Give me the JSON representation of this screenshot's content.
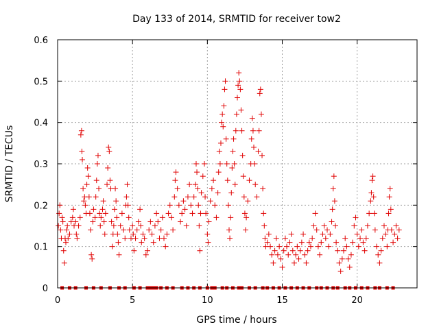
{
  "chart_data": {
    "type": "scatter",
    "title": "Day 133 of 2014, SRMTID for receiver tow2",
    "xlabel": "GPS time / hours",
    "ylabel": "SRMTID / TECUs",
    "xlim": [
      0,
      24
    ],
    "ylim": [
      0,
      0.6
    ],
    "xticks": [
      0,
      5,
      10,
      15,
      20
    ],
    "yticks": [
      0,
      0.1,
      0.2,
      0.3,
      0.4,
      0.5,
      0.6
    ],
    "xtick_labels": [
      "0",
      "5",
      "10",
      "15",
      "20"
    ],
    "ytick_labels": [
      "0",
      "0.1",
      "0.2",
      "0.3",
      "0.4",
      "0.5",
      "0.6"
    ],
    "grid": true,
    "marker": "plus",
    "color": "#e00000",
    "zero_marker": "square",
    "series": [
      {
        "name": "SRMTID",
        "points": [
          [
            0.05,
            0.15
          ],
          [
            0.1,
            0.18
          ],
          [
            0.15,
            0.2
          ],
          [
            0.2,
            0.14
          ],
          [
            0.25,
            0.12
          ],
          [
            0.3,
            0.17
          ],
          [
            0.35,
            0.16
          ],
          [
            0.4,
            0.09
          ],
          [
            0.45,
            0.06
          ],
          [
            0.5,
            0.12
          ],
          [
            0.55,
            0.11
          ],
          [
            0.6,
            0.14
          ],
          [
            0.65,
            0.15
          ],
          [
            0.7,
            0.12
          ],
          [
            0.8,
            0.13
          ],
          [
            0.9,
            0.16
          ],
          [
            1.0,
            0.17
          ],
          [
            1.05,
            0.19
          ],
          [
            1.1,
            0.15
          ],
          [
            1.2,
            0.16
          ],
          [
            1.25,
            0.13
          ],
          [
            1.3,
            0.12
          ],
          [
            1.4,
            0.15
          ],
          [
            1.5,
            0.17
          ],
          [
            1.55,
            0.37
          ],
          [
            1.6,
            0.38
          ],
          [
            1.62,
            0.33
          ],
          [
            1.65,
            0.31
          ],
          [
            1.7,
            0.24
          ],
          [
            1.75,
            0.21
          ],
          [
            1.8,
            0.22
          ],
          [
            1.85,
            0.2
          ],
          [
            1.9,
            0.18
          ],
          [
            1.95,
            0.25
          ],
          [
            2.0,
            0.29
          ],
          [
            2.05,
            0.27
          ],
          [
            2.1,
            0.22
          ],
          [
            2.15,
            0.18
          ],
          [
            2.2,
            0.14
          ],
          [
            2.25,
            0.08
          ],
          [
            2.3,
            0.07
          ],
          [
            2.35,
            0.16
          ],
          [
            2.4,
            0.19
          ],
          [
            2.5,
            0.17
          ],
          [
            2.55,
            0.22
          ],
          [
            2.6,
            0.26
          ],
          [
            2.65,
            0.3
          ],
          [
            2.7,
            0.32
          ],
          [
            2.75,
            0.24
          ],
          [
            2.8,
            0.18
          ],
          [
            2.85,
            0.15
          ],
          [
            2.9,
            0.17
          ],
          [
            3.0,
            0.19
          ],
          [
            3.05,
            0.21
          ],
          [
            3.1,
            0.16
          ],
          [
            3.15,
            0.13
          ],
          [
            3.2,
            0.18
          ],
          [
            3.3,
            0.25
          ],
          [
            3.35,
            0.29
          ],
          [
            3.4,
            0.34
          ],
          [
            3.45,
            0.33
          ],
          [
            3.5,
            0.26
          ],
          [
            3.55,
            0.24
          ],
          [
            3.6,
            0.16
          ],
          [
            3.65,
            0.1
          ],
          [
            3.7,
            0.13
          ],
          [
            3.75,
            0.15
          ],
          [
            3.8,
            0.19
          ],
          [
            3.85,
            0.24
          ],
          [
            3.9,
            0.21
          ],
          [
            3.95,
            0.17
          ],
          [
            4.0,
            0.13
          ],
          [
            4.05,
            0.11
          ],
          [
            4.1,
            0.08
          ],
          [
            4.2,
            0.15
          ],
          [
            4.3,
            0.18
          ],
          [
            4.4,
            0.14
          ],
          [
            4.5,
            0.12
          ],
          [
            4.55,
            0.2
          ],
          [
            4.6,
            0.22
          ],
          [
            4.65,
            0.25
          ],
          [
            4.7,
            0.2
          ],
          [
            4.75,
            0.17
          ],
          [
            4.8,
            0.14
          ],
          [
            4.9,
            0.12
          ],
          [
            5.0,
            0.15
          ],
          [
            5.05,
            0.13
          ],
          [
            5.1,
            0.09
          ],
          [
            5.2,
            0.12
          ],
          [
            5.3,
            0.14
          ],
          [
            5.4,
            0.16
          ],
          [
            5.5,
            0.19
          ],
          [
            5.55,
            0.15
          ],
          [
            5.6,
            0.11
          ],
          [
            5.7,
            0.13
          ],
          [
            5.8,
            0.12
          ],
          [
            5.9,
            0.08
          ],
          [
            6.0,
            0.09
          ],
          [
            6.1,
            0.14
          ],
          [
            6.2,
            0.16
          ],
          [
            6.3,
            0.13
          ],
          [
            6.4,
            0.11
          ],
          [
            6.5,
            0.15
          ],
          [
            6.6,
            0.18
          ],
          [
            6.7,
            0.16
          ],
          [
            6.8,
            0.12
          ],
          [
            6.9,
            0.14
          ],
          [
            7.0,
            0.17
          ],
          [
            7.1,
            0.12
          ],
          [
            7.2,
            0.1
          ],
          [
            7.3,
            0.13
          ],
          [
            7.4,
            0.18
          ],
          [
            7.5,
            0.2
          ],
          [
            7.6,
            0.17
          ],
          [
            7.7,
            0.14
          ],
          [
            7.8,
            0.22
          ],
          [
            7.85,
            0.26
          ],
          [
            7.9,
            0.28
          ],
          [
            8.0,
            0.24
          ],
          [
            8.1,
            0.2
          ],
          [
            8.2,
            0.16
          ],
          [
            8.3,
            0.18
          ],
          [
            8.4,
            0.21
          ],
          [
            8.5,
            0.19
          ],
          [
            8.6,
            0.15
          ],
          [
            8.7,
            0.22
          ],
          [
            8.8,
            0.25
          ],
          [
            8.9,
            0.2
          ],
          [
            9.0,
            0.18
          ],
          [
            9.1,
            0.22
          ],
          [
            9.2,
            0.25
          ],
          [
            9.25,
            0.3
          ],
          [
            9.3,
            0.28
          ],
          [
            9.35,
            0.24
          ],
          [
            9.4,
            0.2
          ],
          [
            9.45,
            0.15
          ],
          [
            9.5,
            0.09
          ],
          [
            9.55,
            0.18
          ],
          [
            9.6,
            0.23
          ],
          [
            9.7,
            0.27
          ],
          [
            9.8,
            0.3
          ],
          [
            9.85,
            0.22
          ],
          [
            9.9,
            0.18
          ],
          [
            10.0,
            0.13
          ],
          [
            10.05,
            0.11
          ],
          [
            10.1,
            0.16
          ],
          [
            10.2,
            0.21
          ],
          [
            10.3,
            0.24
          ],
          [
            10.4,
            0.26
          ],
          [
            10.5,
            0.2
          ],
          [
            10.6,
            0.17
          ],
          [
            10.7,
            0.23
          ],
          [
            10.75,
            0.28
          ],
          [
            10.8,
            0.33
          ],
          [
            10.85,
            0.3
          ],
          [
            10.9,
            0.35
          ],
          [
            10.95,
            0.4
          ],
          [
            11.0,
            0.42
          ],
          [
            11.05,
            0.39
          ],
          [
            11.1,
            0.44
          ],
          [
            11.15,
            0.48
          ],
          [
            11.2,
            0.5
          ],
          [
            11.25,
            0.36
          ],
          [
            11.3,
            0.3
          ],
          [
            11.35,
            0.26
          ],
          [
            11.4,
            0.2
          ],
          [
            11.45,
            0.14
          ],
          [
            11.5,
            0.12
          ],
          [
            11.55,
            0.17
          ],
          [
            11.6,
            0.23
          ],
          [
            11.65,
            0.29
          ],
          [
            11.7,
            0.33
          ],
          [
            11.75,
            0.36
          ],
          [
            11.8,
            0.3
          ],
          [
            11.85,
            0.25
          ],
          [
            11.9,
            0.38
          ],
          [
            11.95,
            0.42
          ],
          [
            12.0,
            0.46
          ],
          [
            12.05,
            0.49
          ],
          [
            12.1,
            0.52
          ],
          [
            12.15,
            0.5
          ],
          [
            12.2,
            0.48
          ],
          [
            12.25,
            0.43
          ],
          [
            12.3,
            0.38
          ],
          [
            12.35,
            0.32
          ],
          [
            12.4,
            0.27
          ],
          [
            12.45,
            0.22
          ],
          [
            12.5,
            0.18
          ],
          [
            12.55,
            0.14
          ],
          [
            12.6,
            0.17
          ],
          [
            12.7,
            0.21
          ],
          [
            12.8,
            0.26
          ],
          [
            12.9,
            0.3
          ],
          [
            12.95,
            0.36
          ],
          [
            13.0,
            0.41
          ],
          [
            13.05,
            0.38
          ],
          [
            13.1,
            0.34
          ],
          [
            13.15,
            0.3
          ],
          [
            13.2,
            0.25
          ],
          [
            13.3,
            0.22
          ],
          [
            13.4,
            0.33
          ],
          [
            13.45,
            0.38
          ],
          [
            13.5,
            0.47
          ],
          [
            13.55,
            0.48
          ],
          [
            13.6,
            0.42
          ],
          [
            13.65,
            0.32
          ],
          [
            13.7,
            0.24
          ],
          [
            13.75,
            0.18
          ],
          [
            13.8,
            0.15
          ],
          [
            13.85,
            0.12
          ],
          [
            13.9,
            0.1
          ],
          [
            14.0,
            0.11
          ],
          [
            14.1,
            0.13
          ],
          [
            14.2,
            0.1
          ],
          [
            14.3,
            0.08
          ],
          [
            14.4,
            0.06
          ],
          [
            14.5,
            0.09
          ],
          [
            14.6,
            0.12
          ],
          [
            14.7,
            0.08
          ],
          [
            14.8,
            0.1
          ],
          [
            14.9,
            0.07
          ],
          [
            15.0,
            0.05
          ],
          [
            15.1,
            0.09
          ],
          [
            15.2,
            0.12
          ],
          [
            15.3,
            0.1
          ],
          [
            15.4,
            0.08
          ],
          [
            15.5,
            0.11
          ],
          [
            15.6,
            0.13
          ],
          [
            15.7,
            0.09
          ],
          [
            15.8,
            0.06
          ],
          [
            15.9,
            0.08
          ],
          [
            16.0,
            0.1
          ],
          [
            16.1,
            0.07
          ],
          [
            16.2,
            0.09
          ],
          [
            16.3,
            0.11
          ],
          [
            16.4,
            0.13
          ],
          [
            16.5,
            0.08
          ],
          [
            16.6,
            0.06
          ],
          [
            16.7,
            0.09
          ],
          [
            16.8,
            0.11
          ],
          [
            16.9,
            0.1
          ],
          [
            17.0,
            0.12
          ],
          [
            17.1,
            0.15
          ],
          [
            17.2,
            0.18
          ],
          [
            17.3,
            0.14
          ],
          [
            17.4,
            0.1
          ],
          [
            17.5,
            0.08
          ],
          [
            17.6,
            0.11
          ],
          [
            17.7,
            0.13
          ],
          [
            17.8,
            0.15
          ],
          [
            17.9,
            0.12
          ],
          [
            18.0,
            0.14
          ],
          [
            18.1,
            0.1
          ],
          [
            18.2,
            0.13
          ],
          [
            18.3,
            0.16
          ],
          [
            18.35,
            0.19
          ],
          [
            18.4,
            0.24
          ],
          [
            18.45,
            0.27
          ],
          [
            18.5,
            0.21
          ],
          [
            18.55,
            0.15
          ],
          [
            18.6,
            0.11
          ],
          [
            18.7,
            0.09
          ],
          [
            18.8,
            0.06
          ],
          [
            18.9,
            0.04
          ],
          [
            19.0,
            0.07
          ],
          [
            19.1,
            0.09
          ],
          [
            19.2,
            0.12
          ],
          [
            19.3,
            0.1
          ],
          [
            19.4,
            0.07
          ],
          [
            19.5,
            0.05
          ],
          [
            19.6,
            0.08
          ],
          [
            19.7,
            0.11
          ],
          [
            19.8,
            0.15
          ],
          [
            19.9,
            0.17
          ],
          [
            20.0,
            0.13
          ],
          [
            20.1,
            0.1
          ],
          [
            20.2,
            0.12
          ],
          [
            20.3,
            0.14
          ],
          [
            20.4,
            0.11
          ],
          [
            20.5,
            0.09
          ],
          [
            20.6,
            0.12
          ],
          [
            20.7,
            0.15
          ],
          [
            20.8,
            0.18
          ],
          [
            20.9,
            0.21
          ],
          [
            20.95,
            0.23
          ],
          [
            21.0,
            0.26
          ],
          [
            21.05,
            0.27
          ],
          [
            21.1,
            0.22
          ],
          [
            21.15,
            0.18
          ],
          [
            21.2,
            0.14
          ],
          [
            21.3,
            0.1
          ],
          [
            21.4,
            0.08
          ],
          [
            21.5,
            0.06
          ],
          [
            21.6,
            0.09
          ],
          [
            21.7,
            0.12
          ],
          [
            21.8,
            0.15
          ],
          [
            21.9,
            0.13
          ],
          [
            22.0,
            0.1
          ],
          [
            22.05,
            0.14
          ],
          [
            22.1,
            0.18
          ],
          [
            22.15,
            0.22
          ],
          [
            22.2,
            0.24
          ],
          [
            22.25,
            0.19
          ],
          [
            22.3,
            0.14
          ],
          [
            22.4,
            0.11
          ],
          [
            22.5,
            0.13
          ],
          [
            22.6,
            0.15
          ],
          [
            22.7,
            0.12
          ],
          [
            22.8,
            0.14
          ]
        ]
      }
    ],
    "zero_x": [
      0.3,
      0.8,
      1.2,
      1.9,
      2.4,
      2.9,
      3.5,
      4.1,
      4.5,
      5.1,
      5.5,
      6.0,
      6.2,
      6.4,
      6.6,
      6.9,
      7.3,
      7.7,
      8.3,
      8.7,
      9.1,
      9.5,
      10.0,
      10.3,
      10.5,
      11.0,
      11.3,
      11.7,
      12.1,
      12.3,
      12.8,
      13.2,
      13.7,
      14.0,
      14.4,
      14.8,
      15.2,
      15.6,
      16.0,
      16.4,
      16.8,
      17.3,
      17.6,
      18.0,
      18.4,
      18.7,
      19.2,
      19.5,
      19.9,
      20.3,
      20.7,
      21.2,
      21.5,
      22.0,
      22.4
    ]
  }
}
